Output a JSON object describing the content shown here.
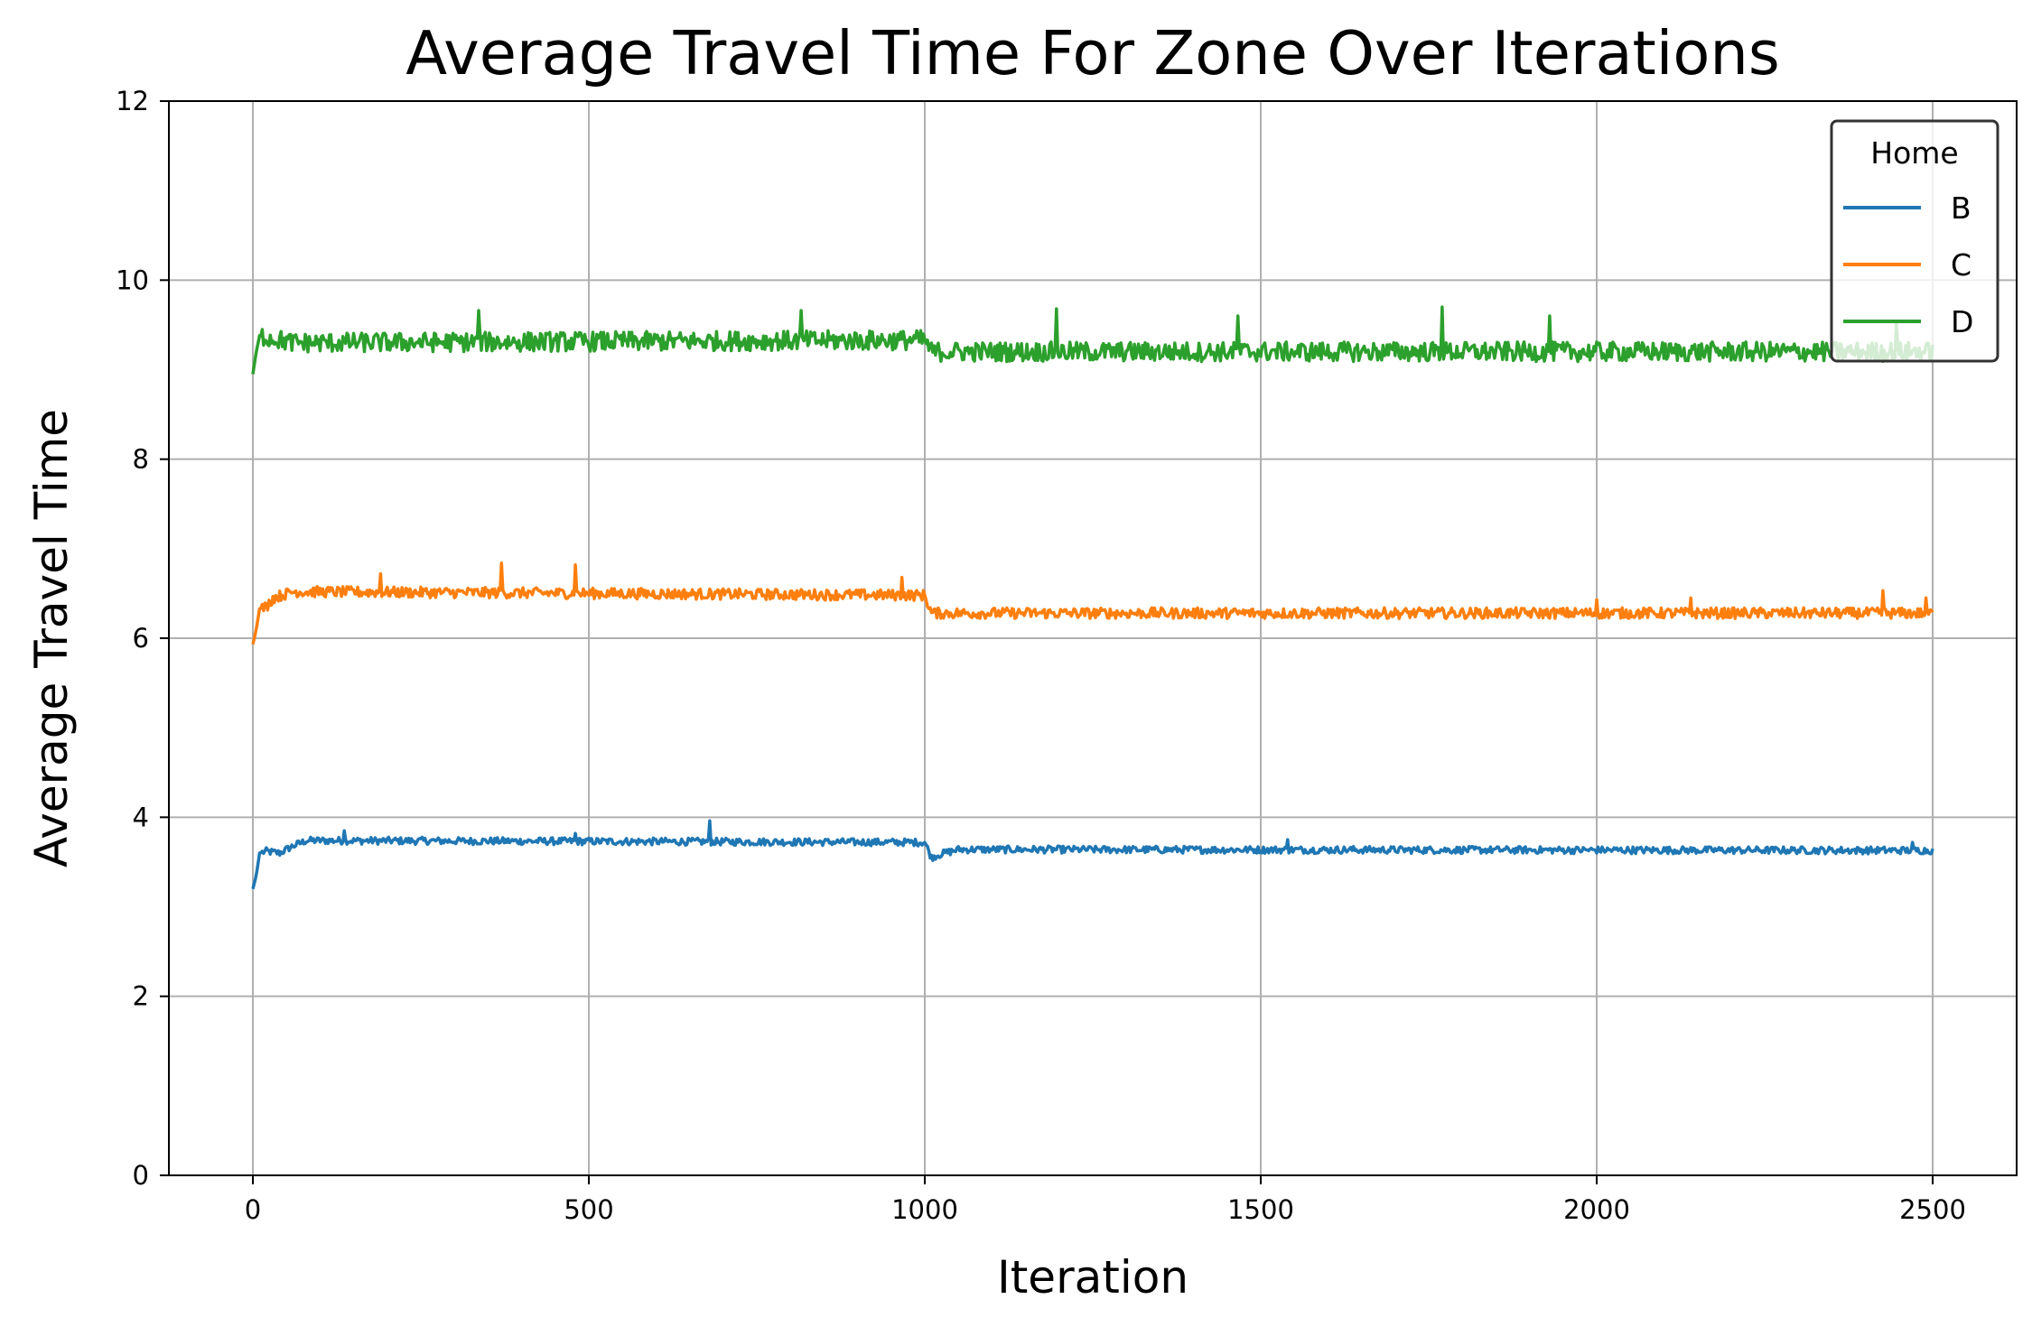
{
  "chart_data": {
    "type": "line",
    "title": "Average Travel Time For Zone Over Iterations",
    "xlabel": "Iteration",
    "ylabel": "Average Travel Time",
    "xlim": [
      -125,
      2625
    ],
    "ylim": [
      0,
      12
    ],
    "xticks": [
      0,
      500,
      1000,
      1500,
      2000,
      2500
    ],
    "yticks": [
      0,
      2,
      4,
      6,
      8,
      10,
      12
    ],
    "grid": true,
    "legend": {
      "title": "Home",
      "placement": "top-right"
    },
    "series": [
      {
        "name": "B",
        "color": "#1f77b4",
        "points": [
          [
            0,
            3.2
          ],
          [
            5,
            3.35
          ],
          [
            10,
            3.6
          ],
          [
            20,
            3.62
          ],
          [
            40,
            3.6
          ],
          [
            60,
            3.68
          ],
          [
            80,
            3.74
          ],
          [
            1000,
            3.72
          ],
          [
            1010,
            3.55
          ],
          [
            1020,
            3.58
          ],
          [
            1050,
            3.64
          ],
          [
            2500,
            3.63
          ]
        ],
        "noise": 0.04,
        "spikes": [
          [
            135,
            3.85
          ],
          [
            480,
            3.82
          ],
          [
            680,
            3.96
          ],
          [
            1540,
            3.75
          ],
          [
            2470,
            3.72
          ]
        ]
      },
      {
        "name": "C",
        "color": "#ff7f0e",
        "points": [
          [
            0,
            5.93
          ],
          [
            5,
            6.1
          ],
          [
            10,
            6.33
          ],
          [
            20,
            6.35
          ],
          [
            30,
            6.45
          ],
          [
            60,
            6.52
          ],
          [
            1000,
            6.48
          ],
          [
            1010,
            6.28
          ],
          [
            2500,
            6.28
          ]
        ],
        "noise": 0.06,
        "spikes": [
          [
            190,
            6.72
          ],
          [
            370,
            6.84
          ],
          [
            480,
            6.82
          ],
          [
            965,
            6.68
          ],
          [
            2000,
            6.43
          ],
          [
            2140,
            6.45
          ],
          [
            2425,
            6.53
          ],
          [
            2490,
            6.45
          ]
        ]
      },
      {
        "name": "D",
        "color": "#2ca02c",
        "points": [
          [
            0,
            8.95
          ],
          [
            5,
            9.2
          ],
          [
            10,
            9.38
          ],
          [
            60,
            9.3
          ],
          [
            1000,
            9.33
          ],
          [
            1010,
            9.2
          ],
          [
            2500,
            9.2
          ]
        ],
        "noise": 0.11,
        "spikes": [
          [
            335,
            9.66
          ],
          [
            815,
            9.66
          ],
          [
            1195,
            9.68
          ],
          [
            1465,
            9.6
          ],
          [
            1770,
            9.7
          ],
          [
            1930,
            9.6
          ],
          [
            2445,
            9.52
          ]
        ]
      }
    ]
  }
}
